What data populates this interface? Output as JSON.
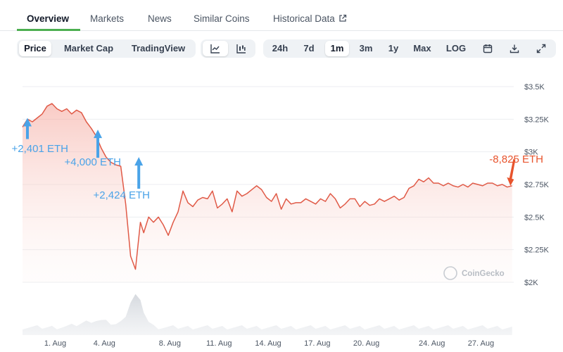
{
  "tabs": [
    {
      "label": "Overview",
      "active": true
    },
    {
      "label": "Markets"
    },
    {
      "label": "News"
    },
    {
      "label": "Similar Coins"
    },
    {
      "label": "Historical Data",
      "icon": "external-link-icon"
    }
  ],
  "toolbar": {
    "chart_modes": [
      "Price",
      "Market Cap",
      "TradingView"
    ],
    "selected_mode": "Price",
    "chart_types": [
      "line-chart-icon",
      "candlestick-icon"
    ],
    "selected_type": "line-chart-icon",
    "ranges": [
      "24h",
      "7d",
      "1m",
      "3m",
      "1y",
      "Max",
      "LOG"
    ],
    "selected_range": "1m",
    "tool_icons": [
      "calendar-icon",
      "download-icon",
      "expand-icon"
    ]
  },
  "chart_data": {
    "type": "area",
    "x_ticks": [
      "1. Aug",
      "4. Aug",
      "8. Aug",
      "11. Aug",
      "14. Aug",
      "17. Aug",
      "20. Aug",
      "24. Aug",
      "27. Aug"
    ],
    "y_ticks": [
      "$3.5K",
      "$3.25K",
      "$3K",
      "$2.75K",
      "$2.5K",
      "$2.25K",
      "$2K"
    ],
    "ylim": [
      2000,
      3500
    ],
    "x_range": [
      29,
      59
    ],
    "grid": true,
    "line_color": "#e05a47",
    "annotation_buy_color": "#4aa3e8",
    "annotation_sell_color": "#e8542d",
    "series": [
      {
        "x": [
          29.0,
          29.3,
          29.6,
          29.9,
          30.2,
          30.5,
          30.8,
          31.1,
          31.4,
          31.7,
          32.0,
          32.3,
          32.6,
          32.9,
          33.2,
          33.5,
          33.8,
          34.1,
          34.4,
          34.7,
          35.0,
          35.3,
          35.6,
          35.9,
          36.2,
          36.4,
          36.7,
          37.0,
          37.3,
          37.6,
          37.9,
          38.2,
          38.5,
          38.8,
          39.1,
          39.4,
          39.7,
          40.0,
          40.3,
          40.6,
          40.9,
          41.2,
          41.5,
          41.8,
          42.1,
          42.4,
          42.7,
          43.0,
          43.3,
          43.6,
          43.9,
          44.2,
          44.5,
          44.8,
          45.1,
          45.4,
          45.7,
          46.0,
          46.3,
          46.6,
          46.9,
          47.2,
          47.5,
          47.8,
          48.1,
          48.4,
          48.7,
          49.0,
          49.3,
          49.6,
          49.9,
          50.2,
          50.5,
          50.8,
          51.1,
          51.4,
          51.7,
          52.0,
          52.3,
          52.6,
          52.9,
          53.2,
          53.5,
          53.8,
          54.1,
          54.4,
          54.7,
          55.0,
          55.3,
          55.6,
          55.9,
          56.2,
          56.5,
          56.8,
          57.1,
          57.4,
          57.7,
          58.0,
          58.3,
          58.6,
          58.9
        ],
        "values": [
          3190,
          3250,
          3230,
          3260,
          3290,
          3350,
          3370,
          3330,
          3310,
          3330,
          3290,
          3320,
          3300,
          3230,
          3180,
          3120,
          3030,
          2960,
          2920,
          2900,
          2890,
          2600,
          2200,
          2100,
          2460,
          2380,
          2500,
          2460,
          2500,
          2440,
          2360,
          2460,
          2540,
          2700,
          2610,
          2580,
          2630,
          2650,
          2640,
          2700,
          2570,
          2600,
          2640,
          2540,
          2700,
          2660,
          2680,
          2710,
          2740,
          2710,
          2650,
          2620,
          2680,
          2560,
          2640,
          2600,
          2610,
          2610,
          2640,
          2620,
          2600,
          2640,
          2620,
          2680,
          2640,
          2570,
          2600,
          2640,
          2640,
          2580,
          2620,
          2590,
          2600,
          2640,
          2620,
          2640,
          2660,
          2630,
          2650,
          2720,
          2740,
          2790,
          2770,
          2800,
          2760,
          2760,
          2740,
          2760,
          2740,
          2730,
          2750,
          2730,
          2760,
          2750,
          2740,
          2760,
          2760,
          2740,
          2750,
          2730,
          2740
        ]
      }
    ],
    "annotations": [
      {
        "text": "+2,401 ETH",
        "type": "buy",
        "x": 29.3,
        "value": 3260
      },
      {
        "text": "+4,000 ETH",
        "type": "buy",
        "x": 33.6,
        "value": 3170
      },
      {
        "text": "+2,424 ETH",
        "type": "buy",
        "x": 36.1,
        "value": 2960
      },
      {
        "text": "-8,825 ETH",
        "type": "sell",
        "x": 58.8,
        "value": 2740
      }
    ],
    "watermark": "CoinGecko"
  }
}
